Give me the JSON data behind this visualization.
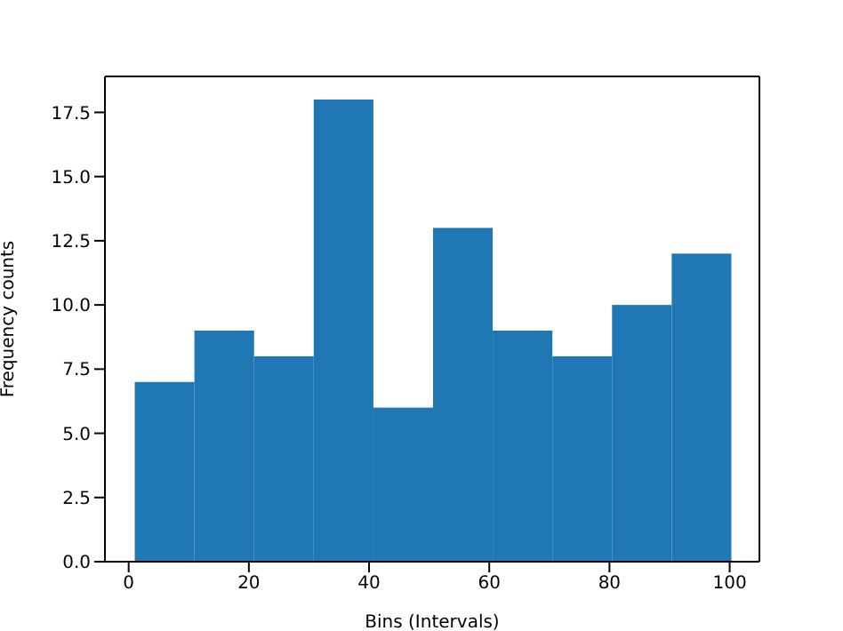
{
  "chart_data": {
    "type": "histogram",
    "xlabel": "Bins (Intervals)",
    "ylabel": "Frequency counts",
    "bins": [
      1,
      10.9,
      20.8,
      30.7,
      40.6,
      50.5,
      60.4,
      70.3,
      80.2,
      90.1,
      100
    ],
    "values": [
      7,
      9,
      8,
      18,
      6,
      13,
      9,
      8,
      10,
      12
    ],
    "color": "#1f77b4",
    "xlim": [
      -3.95,
      104.95
    ],
    "xticks": [
      0,
      20,
      40,
      60,
      80,
      100
    ],
    "ylim": [
      0,
      18.9
    ],
    "yticks": [
      {
        "value": 0,
        "label": "0.0"
      },
      {
        "value": 2.5,
        "label": "2.5"
      },
      {
        "value": 5,
        "label": "5.0"
      },
      {
        "value": 7.5,
        "label": "7.5"
      },
      {
        "value": 10,
        "label": "10.0"
      },
      {
        "value": 12.5,
        "label": "12.5"
      },
      {
        "value": 15,
        "label": "15.0"
      },
      {
        "value": 17.5,
        "label": "17.5"
      }
    ],
    "grid": false,
    "legend": false
  }
}
